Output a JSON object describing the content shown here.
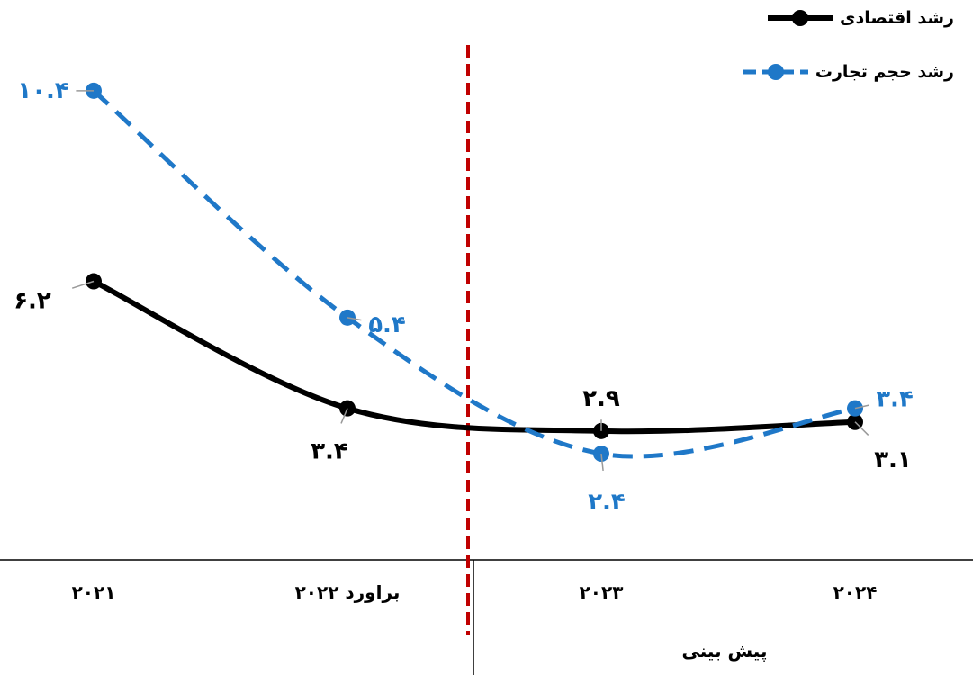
{
  "chart_data": {
    "type": "line",
    "categories": [
      "۲۰۲۱",
      "براورد ۲۰۲۲",
      "۲۰۲۳",
      "۲۰۲۴"
    ],
    "series": [
      {
        "name": "رشد اقتصادی",
        "color": "#000000",
        "style": "solid",
        "values": [
          6.2,
          3.4,
          2.9,
          3.1
        ],
        "labels": [
          "۶.۲",
          "۳.۴",
          "۲.۹",
          "۳.۱"
        ]
      },
      {
        "name": "رشد حجم تجارت",
        "color": "#1f78c8",
        "style": "dashed",
        "values": [
          10.4,
          5.4,
          2.4,
          3.4
        ],
        "labels": [
          "۱۰.۴",
          "۵.۴",
          "۲.۴",
          "۳.۴"
        ]
      }
    ],
    "divider_color": "#c00000",
    "forecast_label": "پیش بینی",
    "legend_position": "top-right",
    "grid": false
  }
}
